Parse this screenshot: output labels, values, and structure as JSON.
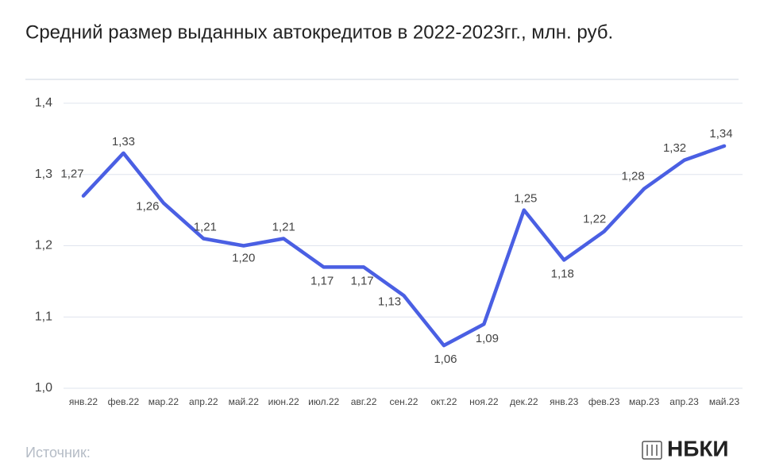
{
  "chart_data": {
    "type": "line",
    "title": "Средний размер выданных автокредитов в 2022-2023гг., млн. руб.",
    "categories": [
      "янв.22",
      "фев.22",
      "мар.22",
      "апр.22",
      "май.22",
      "июн.22",
      "июл.22",
      "авг.22",
      "сен.22",
      "окт.22",
      "ноя.22",
      "дек.22",
      "янв.23",
      "фев.23",
      "мар.23",
      "апр.23",
      "май.23"
    ],
    "series": [
      {
        "name": "Средний размер",
        "color": "#4a5fe3",
        "values": [
          1.27,
          1.33,
          1.26,
          1.21,
          1.2,
          1.21,
          1.17,
          1.17,
          1.13,
          1.06,
          1.09,
          1.25,
          1.18,
          1.22,
          1.28,
          1.32,
          1.34
        ],
        "value_labels": [
          "1,27",
          "1,33",
          "1,26",
          "1,21",
          "1,20",
          "1,21",
          "1,17",
          "1,17",
          "1,13",
          "1,06",
          "1,09",
          "1,25",
          "1,18",
          "1,22",
          "1,28",
          "1,32",
          "1,34"
        ]
      }
    ],
    "ylim": [
      1.0,
      1.4
    ],
    "yticks": [
      {
        "value": 1.0,
        "label": "1,0"
      },
      {
        "value": 1.1,
        "label": "1,1"
      },
      {
        "value": 1.2,
        "label": "1,2"
      },
      {
        "value": 1.3,
        "label": "1,3"
      },
      {
        "value": 1.4,
        "label": "1,4"
      }
    ],
    "grid": true
  },
  "footer": {
    "source": "Источник:",
    "logo": "НБКИ"
  }
}
